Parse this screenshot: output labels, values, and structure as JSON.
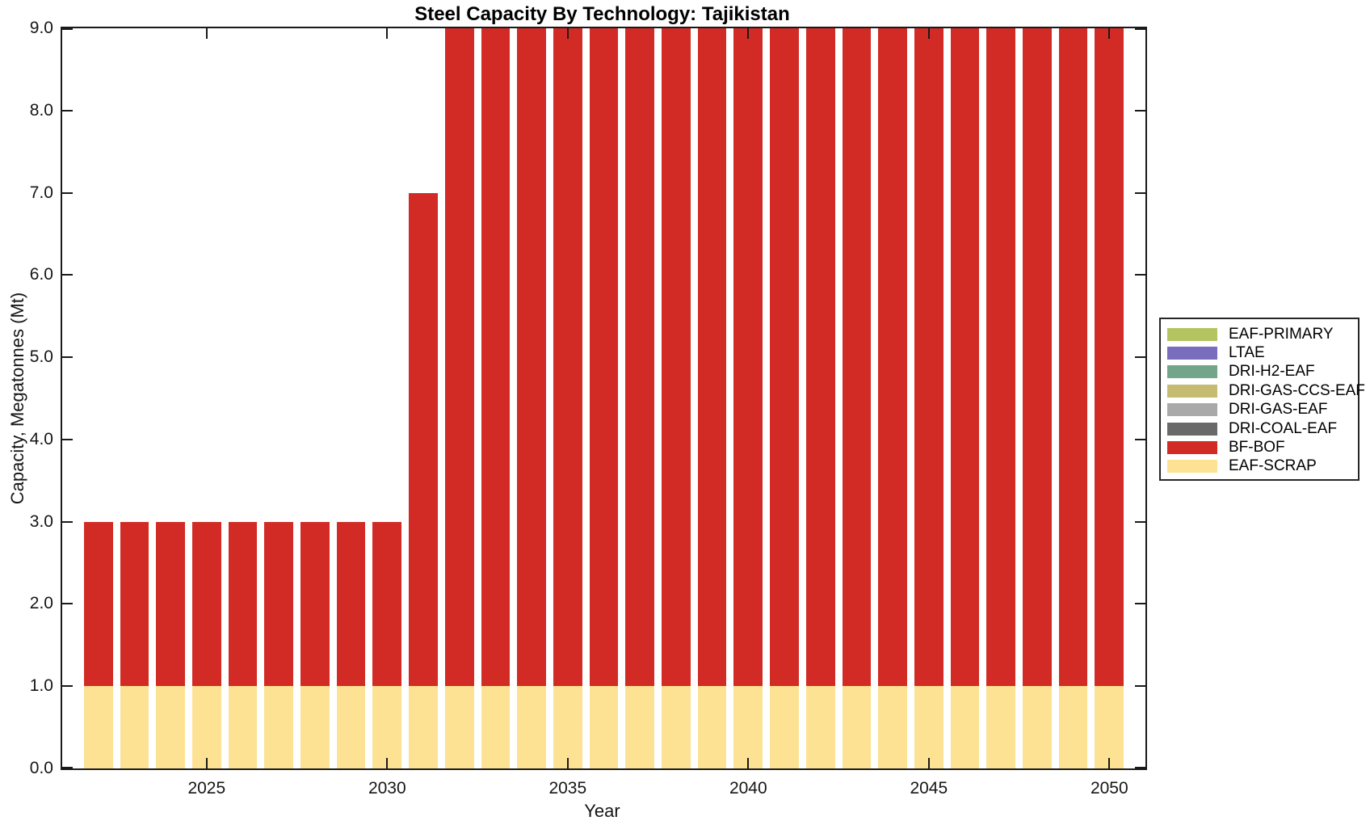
{
  "title": "Steel Capacity By Technology: Tajikistan",
  "axes": {
    "xlabel": "Year",
    "ylabel": "Capacity, Megatonnes (Mt)",
    "x_ticks": [
      "2025",
      "2030",
      "2035",
      "2040",
      "2045",
      "2050"
    ],
    "y_ticks": [
      "0.0",
      "1.0",
      "2.0",
      "3.0",
      "4.0",
      "5.0",
      "6.0",
      "7.0",
      "8.0",
      "9.0"
    ]
  },
  "legend": {
    "items": [
      {
        "label": "EAF-PRIMARY",
        "color": "#b4c461"
      },
      {
        "label": "LTAE",
        "color": "#796dbd"
      },
      {
        "label": "DRI-H2-EAF",
        "color": "#73a58a"
      },
      {
        "label": "DRI-GAS-CCS-EAF",
        "color": "#c5bc71"
      },
      {
        "label": "DRI-GAS-EAF",
        "color": "#a9a9a9"
      },
      {
        "label": "DRI-COAL-EAF",
        "color": "#696969"
      },
      {
        "label": "BF-BOF",
        "color": "#d22b26"
      },
      {
        "label": "EAF-SCRAP",
        "color": "#fde294"
      }
    ]
  },
  "chart_data": {
    "type": "bar",
    "stacked": true,
    "title": "Steel Capacity By Technology: Tajikistan",
    "xlabel": "Year",
    "ylabel": "Capacity, Megatonnes (Mt)",
    "x": [
      2022,
      2023,
      2024,
      2025,
      2026,
      2027,
      2028,
      2029,
      2030,
      2031,
      2032,
      2033,
      2034,
      2035,
      2036,
      2037,
      2038,
      2039,
      2040,
      2041,
      2042,
      2043,
      2044,
      2045,
      2046,
      2047,
      2048,
      2049,
      2050
    ],
    "xlim": [
      2021,
      2051
    ],
    "ylim": [
      0,
      9
    ],
    "bar_width_fraction": 0.8,
    "grid": false,
    "legend_position": "right-outside",
    "series": [
      {
        "name": "EAF-SCRAP",
        "color": "#fde294",
        "values": [
          1,
          1,
          1,
          1,
          1,
          1,
          1,
          1,
          1,
          1,
          1,
          1,
          1,
          1,
          1,
          1,
          1,
          1,
          1,
          1,
          1,
          1,
          1,
          1,
          1,
          1,
          1,
          1,
          1
        ]
      },
      {
        "name": "BF-BOF",
        "color": "#d22b26",
        "values": [
          2,
          2,
          2,
          2,
          2,
          2,
          2,
          2,
          2,
          6,
          8,
          8,
          8,
          8,
          8,
          8,
          8,
          8,
          8,
          8,
          8,
          8,
          8,
          8,
          8,
          8,
          8,
          8,
          8
        ]
      },
      {
        "name": "DRI-COAL-EAF",
        "color": "#696969",
        "values": [
          0,
          0,
          0,
          0,
          0,
          0,
          0,
          0,
          0,
          0,
          0,
          0,
          0,
          0,
          0,
          0,
          0,
          0,
          0,
          0,
          0,
          0,
          0,
          0,
          0,
          0,
          0,
          0,
          0
        ]
      },
      {
        "name": "DRI-GAS-EAF",
        "color": "#a9a9a9",
        "values": [
          0,
          0,
          0,
          0,
          0,
          0,
          0,
          0,
          0,
          0,
          0,
          0,
          0,
          0,
          0,
          0,
          0,
          0,
          0,
          0,
          0,
          0,
          0,
          0,
          0,
          0,
          0,
          0,
          0
        ]
      },
      {
        "name": "DRI-GAS-CCS-EAF",
        "color": "#c5bc71",
        "values": [
          0,
          0,
          0,
          0,
          0,
          0,
          0,
          0,
          0,
          0,
          0,
          0,
          0,
          0,
          0,
          0,
          0,
          0,
          0,
          0,
          0,
          0,
          0,
          0,
          0,
          0,
          0,
          0,
          0
        ]
      },
      {
        "name": "DRI-H2-EAF",
        "color": "#73a58a",
        "values": [
          0,
          0,
          0,
          0,
          0,
          0,
          0,
          0,
          0,
          0,
          0,
          0,
          0,
          0,
          0,
          0,
          0,
          0,
          0,
          0,
          0,
          0,
          0,
          0,
          0,
          0,
          0,
          0,
          0
        ]
      },
      {
        "name": "LTAE",
        "color": "#796dbd",
        "values": [
          0,
          0,
          0,
          0,
          0,
          0,
          0,
          0,
          0,
          0,
          0,
          0,
          0,
          0,
          0,
          0,
          0,
          0,
          0,
          0,
          0,
          0,
          0,
          0,
          0,
          0,
          0,
          0,
          0
        ]
      },
      {
        "name": "EAF-PRIMARY",
        "color": "#b4c461",
        "values": [
          0,
          0,
          0,
          0,
          0,
          0,
          0,
          0,
          0,
          0,
          0,
          0,
          0,
          0,
          0,
          0,
          0,
          0,
          0,
          0,
          0,
          0,
          0,
          0,
          0,
          0,
          0,
          0,
          0
        ]
      }
    ]
  }
}
